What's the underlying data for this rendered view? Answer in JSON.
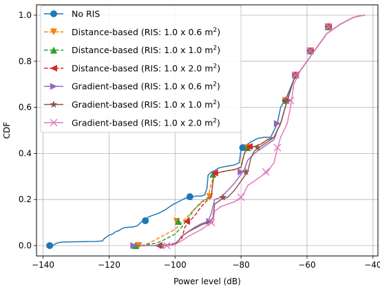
{
  "chart_data": {
    "type": "line",
    "xlabel": "Power level (dB)",
    "ylabel": "CDF",
    "xlim": [
      -142,
      -38.5
    ],
    "ylim": [
      -0.045,
      1.045
    ],
    "xticks": [
      -140,
      -120,
      -100,
      -80,
      -60,
      -40
    ],
    "yticks": [
      0.0,
      0.2,
      0.4,
      0.6,
      0.8,
      1.0
    ],
    "xtick_labels": [
      "−140",
      "−120",
      "−100",
      "−80",
      "−60",
      "−40"
    ],
    "ytick_labels": [
      "0.0",
      "0.2",
      "0.4",
      "0.6",
      "0.8",
      "1.0"
    ],
    "grid": true,
    "legend_position": "upper-left",
    "series": [
      {
        "name": "No RIS",
        "legend_label": "No RIS",
        "legend_sup": "",
        "color": "#1f77b4",
        "linestyle": "solid",
        "marker": "circle",
        "x": [
          -138,
          -137,
          -136,
          -134.5,
          -132,
          -128,
          -124,
          -122,
          -121.5,
          -121,
          -120,
          -119,
          -118,
          -117,
          -116,
          -115,
          -114,
          -113,
          -111.5,
          -110,
          -109,
          -108,
          -107,
          -105,
          -103,
          -101,
          -99,
          -97,
          -95.5,
          -95,
          -93.5,
          -92,
          -91,
          -90.3,
          -90,
          -89,
          -88,
          -87,
          -86,
          -84,
          -82,
          -80.5,
          -80,
          -79,
          -78,
          -77,
          -75,
          -73,
          -71,
          -70,
          -69,
          -68,
          -66,
          -64,
          -62,
          -60,
          -58,
          -56,
          -54,
          -52,
          -50,
          -48,
          -46,
          -44,
          -42.5
        ],
        "y": [
          0.0,
          0.0,
          0.01,
          0.015,
          0.016,
          0.017,
          0.018,
          0.02,
          0.03,
          0.035,
          0.045,
          0.05,
          0.06,
          0.065,
          0.075,
          0.078,
          0.08,
          0.08,
          0.085,
          0.105,
          0.11,
          0.125,
          0.13,
          0.14,
          0.155,
          0.175,
          0.19,
          0.205,
          0.21,
          0.212,
          0.215,
          0.215,
          0.22,
          0.25,
          0.305,
          0.32,
          0.325,
          0.335,
          0.34,
          0.345,
          0.35,
          0.36,
          0.42,
          0.43,
          0.44,
          0.45,
          0.465,
          0.47,
          0.47,
          0.5,
          0.53,
          0.6,
          0.65,
          0.72,
          0.76,
          0.8,
          0.84,
          0.88,
          0.92,
          0.94,
          0.96,
          0.975,
          0.99,
          0.997,
          1.0
        ],
        "marker_x": [
          -138,
          -109,
          -95.5,
          -79.5,
          -66.5,
          -63.5,
          -59,
          -53.5
        ],
        "marker_y": [
          0.0,
          0.108,
          0.212,
          0.425,
          0.63,
          0.74,
          0.845,
          0.95
        ]
      },
      {
        "name": "Distance-based (RIS: 1.0 x 0.6 m2)",
        "legend_label": "Distance-based (RIS: 1.0 x 0.6 m",
        "legend_sup": "2",
        "color": "#ff7f0e",
        "linestyle": "dashed",
        "marker": "triangle-down",
        "x": [
          -112,
          -110,
          -108,
          -106,
          -104,
          -102,
          -100,
          -98,
          -96,
          -94,
          -92,
          -90.5,
          -90,
          -89,
          -88,
          -86,
          -84,
          -82,
          -80,
          -79,
          -78,
          -76,
          -74,
          -72,
          -70,
          -69,
          -68,
          -66,
          -64,
          -62,
          -60,
          -58,
          -56,
          -54,
          -52,
          -50,
          -48,
          -46,
          -44,
          -42.5
        ],
        "y": [
          0.0,
          0.0,
          0.01,
          0.025,
          0.04,
          0.055,
          0.07,
          0.1,
          0.13,
          0.16,
          0.185,
          0.205,
          0.21,
          0.27,
          0.31,
          0.32,
          0.325,
          0.33,
          0.34,
          0.4,
          0.42,
          0.43,
          0.44,
          0.46,
          0.47,
          0.5,
          0.53,
          0.63,
          0.72,
          0.76,
          0.8,
          0.84,
          0.88,
          0.92,
          0.94,
          0.96,
          0.975,
          0.99,
          0.997,
          1.0
        ],
        "marker_x": [
          -111,
          -99.5,
          -89.5,
          -78,
          -66.5,
          -63.5,
          -59,
          -53.5
        ],
        "marker_y": [
          0.0,
          0.105,
          0.212,
          0.425,
          0.63,
          0.74,
          0.845,
          0.95
        ]
      },
      {
        "name": "Distance-based (RIS: 1.0 x 1.0 m2)",
        "legend_label": "Distance-based (RIS: 1.0 x 1.0 m",
        "legend_sup": "2",
        "color": "#2ca02c",
        "linestyle": "dashed",
        "marker": "triangle-up",
        "x": [
          -112,
          -110,
          -108,
          -106,
          -104,
          -102,
          -100,
          -98,
          -96,
          -94,
          -92,
          -90,
          -89,
          -88.5,
          -88,
          -86,
          -84,
          -82,
          -80,
          -79,
          -78,
          -76,
          -74,
          -72,
          -70,
          -69,
          -68,
          -66,
          -64,
          -62,
          -60,
          -58,
          -56,
          -54,
          -52,
          -50,
          -48,
          -46,
          -44,
          -42.5
        ],
        "y": [
          0.0,
          0.0,
          0.005,
          0.01,
          0.02,
          0.035,
          0.05,
          0.08,
          0.12,
          0.16,
          0.19,
          0.205,
          0.21,
          0.28,
          0.31,
          0.32,
          0.325,
          0.33,
          0.34,
          0.4,
          0.42,
          0.43,
          0.44,
          0.46,
          0.47,
          0.5,
          0.53,
          0.63,
          0.72,
          0.76,
          0.8,
          0.84,
          0.88,
          0.92,
          0.94,
          0.96,
          0.975,
          0.99,
          0.997,
          1.0
        ],
        "marker_x": [
          -112,
          -99,
          -88.5,
          -78,
          -66.5,
          -63.5,
          -59,
          -53.5
        ],
        "marker_y": [
          0.0,
          0.105,
          0.31,
          0.425,
          0.63,
          0.74,
          0.845,
          0.95
        ]
      },
      {
        "name": "Distance-based (RIS: 1.0 x 2.0 m2)",
        "legend_label": "Distance-based (RIS: 1.0 x 2.0 m",
        "legend_sup": "2",
        "color": "#d62728",
        "linestyle": "dashed",
        "marker": "triangle-left",
        "x": [
          -106,
          -104,
          -102,
          -100,
          -98,
          -97,
          -96,
          -94,
          -92,
          -90,
          -89,
          -88.5,
          -88,
          -86,
          -84,
          -82,
          -80,
          -79,
          -78,
          -76,
          -74,
          -72,
          -70,
          -69,
          -68,
          -66,
          -64,
          -62,
          -60,
          -58,
          -56,
          -54,
          -52,
          -50,
          -48,
          -46,
          -44,
          -42.5
        ],
        "y": [
          0.0,
          0.0,
          0.005,
          0.01,
          0.03,
          0.08,
          0.1,
          0.13,
          0.17,
          0.2,
          0.21,
          0.28,
          0.31,
          0.32,
          0.325,
          0.33,
          0.34,
          0.4,
          0.42,
          0.43,
          0.44,
          0.46,
          0.47,
          0.5,
          0.53,
          0.63,
          0.72,
          0.76,
          0.8,
          0.84,
          0.88,
          0.92,
          0.94,
          0.96,
          0.975,
          0.99,
          0.997,
          1.0
        ],
        "marker_x": [
          -105,
          -96.5,
          -88,
          -77.5,
          -66.5,
          -63.5,
          -59,
          -53.5
        ],
        "marker_y": [
          0.0,
          0.105,
          0.315,
          0.43,
          0.63,
          0.74,
          0.845,
          0.95
        ]
      },
      {
        "name": "Gradient-based (RIS: 1.0 x 0.6 m2)",
        "legend_label": "Gradient-based (RIS: 1.0 x 0.6 m",
        "legend_sup": "2",
        "color": "#9467bd",
        "linestyle": "solid",
        "marker": "triangle-right",
        "x": [
          -112,
          -110,
          -108,
          -106,
          -104,
          -102,
          -100,
          -99,
          -98,
          -96,
          -94,
          -92,
          -90,
          -89,
          -88,
          -86,
          -84,
          -82,
          -80,
          -79,
          -78,
          -76,
          -74,
          -72,
          -70,
          -69,
          -68,
          -66,
          -64,
          -62,
          -60,
          -58,
          -56,
          -54,
          -52,
          -50,
          -48,
          -46,
          -44,
          -42.5
        ],
        "y": [
          0.0,
          0.0,
          0.0,
          0.0,
          0.0,
          0.0,
          0.01,
          0.02,
          0.04,
          0.06,
          0.08,
          0.095,
          0.105,
          0.14,
          0.2,
          0.21,
          0.24,
          0.27,
          0.31,
          0.33,
          0.37,
          0.4,
          0.42,
          0.44,
          0.46,
          0.5,
          0.53,
          0.63,
          0.72,
          0.76,
          0.8,
          0.84,
          0.88,
          0.92,
          0.94,
          0.96,
          0.975,
          0.99,
          0.997,
          1.0
        ],
        "marker_x": [
          -112.5,
          -89.5,
          -80,
          -69,
          -65.5,
          -63.5,
          -59,
          -53.5
        ],
        "marker_y": [
          0.0,
          0.105,
          0.32,
          0.53,
          0.63,
          0.74,
          0.845,
          0.95
        ]
      },
      {
        "name": "Gradient-based (RIS: 1.0 x 1.0 m2)",
        "legend_label": "Gradient-based (RIS: 1.0 x 1.0 m",
        "legend_sup": "2",
        "color": "#8c564b",
        "linestyle": "solid",
        "marker": "star",
        "x": [
          -104,
          -102,
          -100,
          -99,
          -98,
          -96,
          -94,
          -92,
          -90,
          -88.5,
          -88,
          -86,
          -84,
          -82,
          -80,
          -78,
          -77,
          -76,
          -75,
          -74,
          -72,
          -70,
          -69,
          -68,
          -66,
          -64,
          -62,
          -60,
          -58,
          -56,
          -54,
          -52,
          -50,
          -48,
          -46,
          -44,
          -42.5
        ],
        "y": [
          0.0,
          0.0,
          0.005,
          0.02,
          0.04,
          0.06,
          0.075,
          0.09,
          0.1,
          0.12,
          0.18,
          0.2,
          0.21,
          0.24,
          0.28,
          0.32,
          0.38,
          0.41,
          0.42,
          0.43,
          0.45,
          0.47,
          0.5,
          0.53,
          0.63,
          0.72,
          0.76,
          0.8,
          0.84,
          0.88,
          0.92,
          0.94,
          0.96,
          0.975,
          0.99,
          0.997,
          1.0
        ],
        "marker_x": [
          -104,
          -85.5,
          -78.5,
          -75,
          -66,
          -63.5,
          -59,
          -53.5
        ],
        "marker_y": [
          0.0,
          0.21,
          0.32,
          0.425,
          0.63,
          0.74,
          0.845,
          0.95
        ]
      },
      {
        "name": "Gradient-based (RIS: 1.0 x 2.0 m2)",
        "legend_label": "Gradient-based (RIS: 1.0 x 2.0 m",
        "legend_sup": "2",
        "color": "#e377c2",
        "linestyle": "solid",
        "marker": "x",
        "x": [
          -104,
          -102,
          -100,
          -98,
          -96,
          -94,
          -92,
          -90,
          -88.5,
          -88,
          -86,
          -84,
          -82,
          -80,
          -79,
          -78,
          -76,
          -74,
          -72,
          -70,
          -69,
          -68,
          -66,
          -65,
          -64,
          -62,
          -60,
          -58,
          -56,
          -54,
          -52,
          -50,
          -48,
          -46,
          -44,
          -42.5
        ],
        "y": [
          0.0,
          0.0,
          0.005,
          0.02,
          0.04,
          0.055,
          0.07,
          0.09,
          0.1,
          0.15,
          0.17,
          0.18,
          0.19,
          0.21,
          0.23,
          0.26,
          0.28,
          0.3,
          0.32,
          0.36,
          0.42,
          0.47,
          0.53,
          0.6,
          0.7,
          0.76,
          0.8,
          0.84,
          0.88,
          0.92,
          0.94,
          0.96,
          0.975,
          0.99,
          0.997,
          1.0
        ],
        "marker_x": [
          -102.5,
          -89,
          -80,
          -72.5,
          -69,
          -65,
          -63.5,
          -59,
          -53.5
        ],
        "marker_y": [
          0.0,
          0.1,
          0.21,
          0.32,
          0.425,
          0.63,
          0.74,
          0.845,
          0.95
        ]
      }
    ]
  }
}
